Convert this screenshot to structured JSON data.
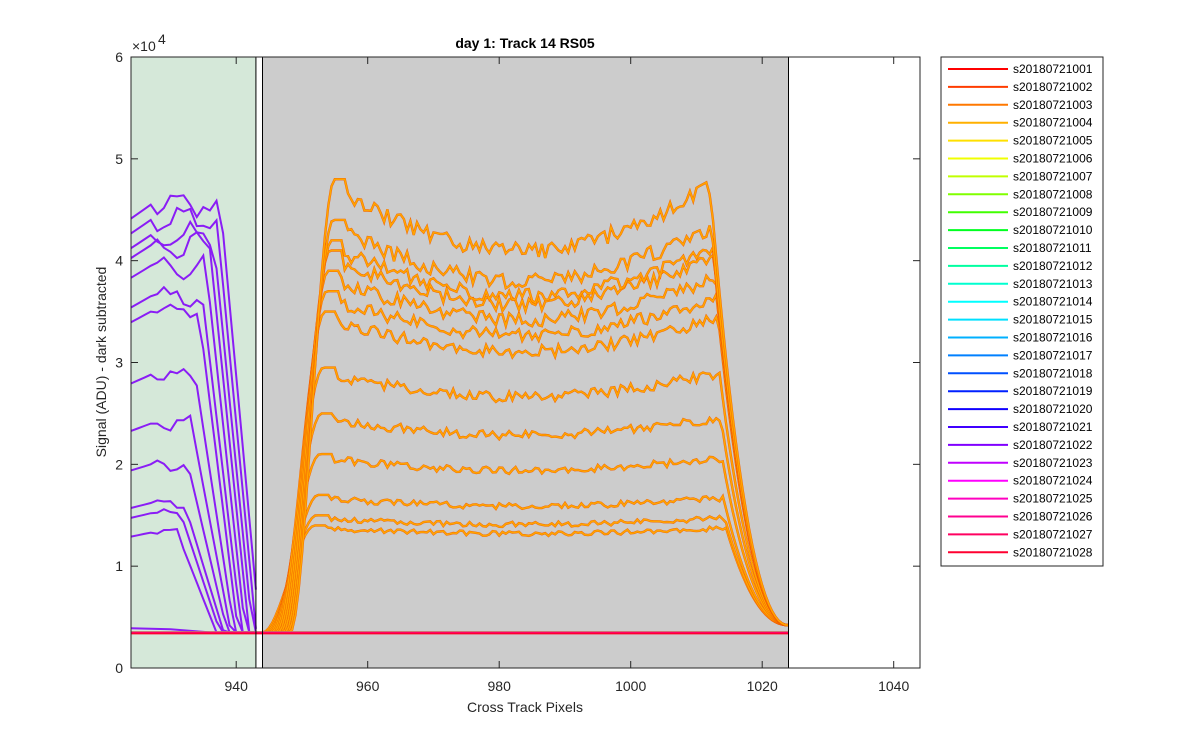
{
  "chart_data": {
    "type": "line",
    "title": "day 1: Track 14  RS05",
    "xlabel": "Cross Track Pixels",
    "ylabel": "Signal (ADU) - dark subtracted",
    "xlim": [
      924,
      1044
    ],
    "ylim": [
      0,
      60000
    ],
    "y_exponent_label": "×10",
    "y_exponent_power": "4",
    "x_ticks": [
      940,
      960,
      980,
      1000,
      1020,
      1040
    ],
    "x_tick_labels": [
      "940",
      "960",
      "980",
      "1000",
      "1020",
      "1040"
    ],
    "y_ticks": [
      0,
      10000,
      20000,
      30000,
      40000,
      50000,
      60000
    ],
    "y_tick_labels": [
      "0",
      "1",
      "2",
      "3",
      "4",
      "5",
      "6"
    ],
    "grid": false,
    "legend_position": "outside-right",
    "shaded_regions": [
      {
        "x_start": 924,
        "x_end": 943,
        "color": "#d5e8d9"
      },
      {
        "x_start": 944,
        "x_end": 1024,
        "color": "#cccccc"
      }
    ],
    "vertical_lines": [
      943,
      944,
      1024
    ],
    "purple_series": {
      "color": "#8a1df5",
      "x": [
        924,
        926,
        928,
        930,
        932,
        934,
        936,
        938,
        940,
        942,
        943
      ],
      "levels": [
        13300,
        15200,
        16200,
        20000,
        24000,
        28800,
        35000,
        36500,
        39500,
        41500,
        42500,
        44000,
        45500
      ],
      "baseline": 3500
    },
    "orange_series": {
      "color": "#ffa500",
      "overlay_color": "#f25a00",
      "x_plateau_start": 952,
      "x_plateau_end": 1012,
      "levels": [
        14000,
        15000,
        17000,
        21000,
        25000,
        29500,
        35000,
        37000,
        39000,
        41000,
        42000,
        44000,
        48000
      ],
      "baseline": 3500
    },
    "flat_series": {
      "x": [
        924,
        1024
      ],
      "value": 3400
    },
    "legend_entries": [
      {
        "name": "s20180721001",
        "color": "#ff0000"
      },
      {
        "name": "s20180721002",
        "color": "#ff3c00"
      },
      {
        "name": "s20180721003",
        "color": "#ff7800"
      },
      {
        "name": "s20180721004",
        "color": "#ffb000"
      },
      {
        "name": "s20180721005",
        "color": "#ffe000"
      },
      {
        "name": "s20180721006",
        "color": "#f0ff00"
      },
      {
        "name": "s20180721007",
        "color": "#c0ff00"
      },
      {
        "name": "s20180721008",
        "color": "#80ff00"
      },
      {
        "name": "s20180721009",
        "color": "#40ff00"
      },
      {
        "name": "s20180721010",
        "color": "#00ff20"
      },
      {
        "name": "s20180721011",
        "color": "#00ff60"
      },
      {
        "name": "s20180721012",
        "color": "#00ffa0"
      },
      {
        "name": "s20180721013",
        "color": "#00ffd0"
      },
      {
        "name": "s20180721014",
        "color": "#00ffff"
      },
      {
        "name": "s20180721015",
        "color": "#00e0ff"
      },
      {
        "name": "s20180721016",
        "color": "#00b0ff"
      },
      {
        "name": "s20180721017",
        "color": "#0080ff"
      },
      {
        "name": "s20180721018",
        "color": "#0050ff"
      },
      {
        "name": "s20180721019",
        "color": "#0020ff"
      },
      {
        "name": "s20180721020",
        "color": "#1000ff"
      },
      {
        "name": "s20180721021",
        "color": "#4000ff"
      },
      {
        "name": "s20180721022",
        "color": "#8000ff"
      },
      {
        "name": "s20180721023",
        "color": "#c000ff"
      },
      {
        "name": "s20180721024",
        "color": "#ff00ff"
      },
      {
        "name": "s20180721025",
        "color": "#ff00c0"
      },
      {
        "name": "s20180721026",
        "color": "#ff0090"
      },
      {
        "name": "s20180721027",
        "color": "#ff0060"
      },
      {
        "name": "s20180721028",
        "color": "#ff0030"
      }
    ]
  }
}
